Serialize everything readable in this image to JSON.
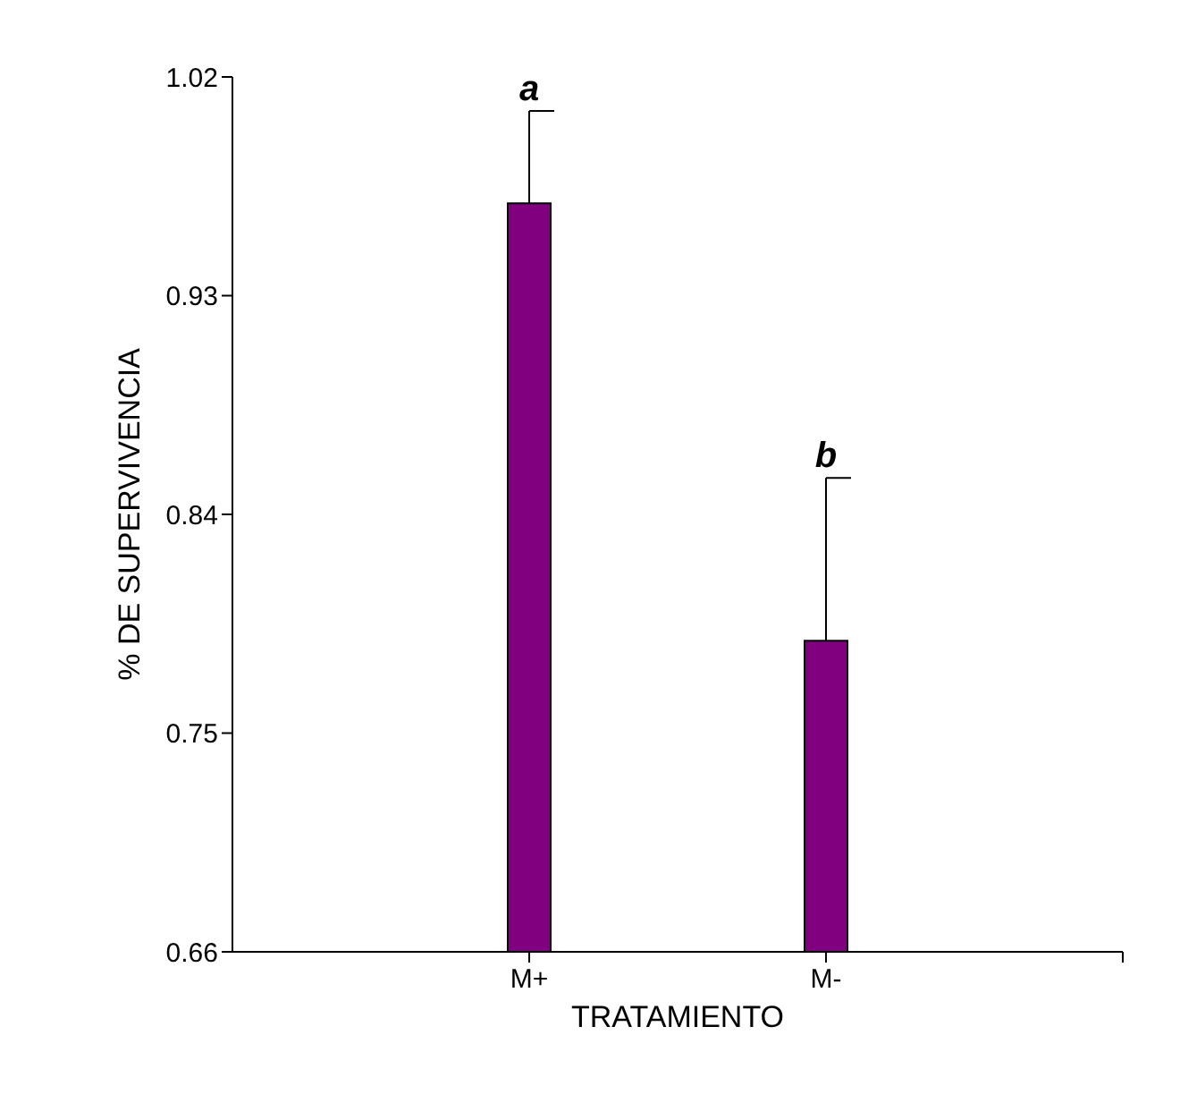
{
  "chart_data": {
    "type": "bar",
    "xlabel": "TRATAMIENTO",
    "ylabel": "% DE SUPERVIVENCIA",
    "categories": [
      "M+",
      "M-"
    ],
    "values": [
      0.968,
      0.788
    ],
    "errors": [
      [
        0.968,
        1.006
      ],
      [
        0.788,
        0.855
      ]
    ],
    "color": "#800080",
    "ylim": [
      0.66,
      1.02
    ],
    "yticks": [
      0.66,
      0.75,
      0.84,
      0.93,
      1.02
    ],
    "annotations": [
      {
        "text": "a",
        "x": "M+",
        "y": 1.006
      },
      {
        "text": "b",
        "x": "M-",
        "y": 0.855
      }
    ]
  }
}
